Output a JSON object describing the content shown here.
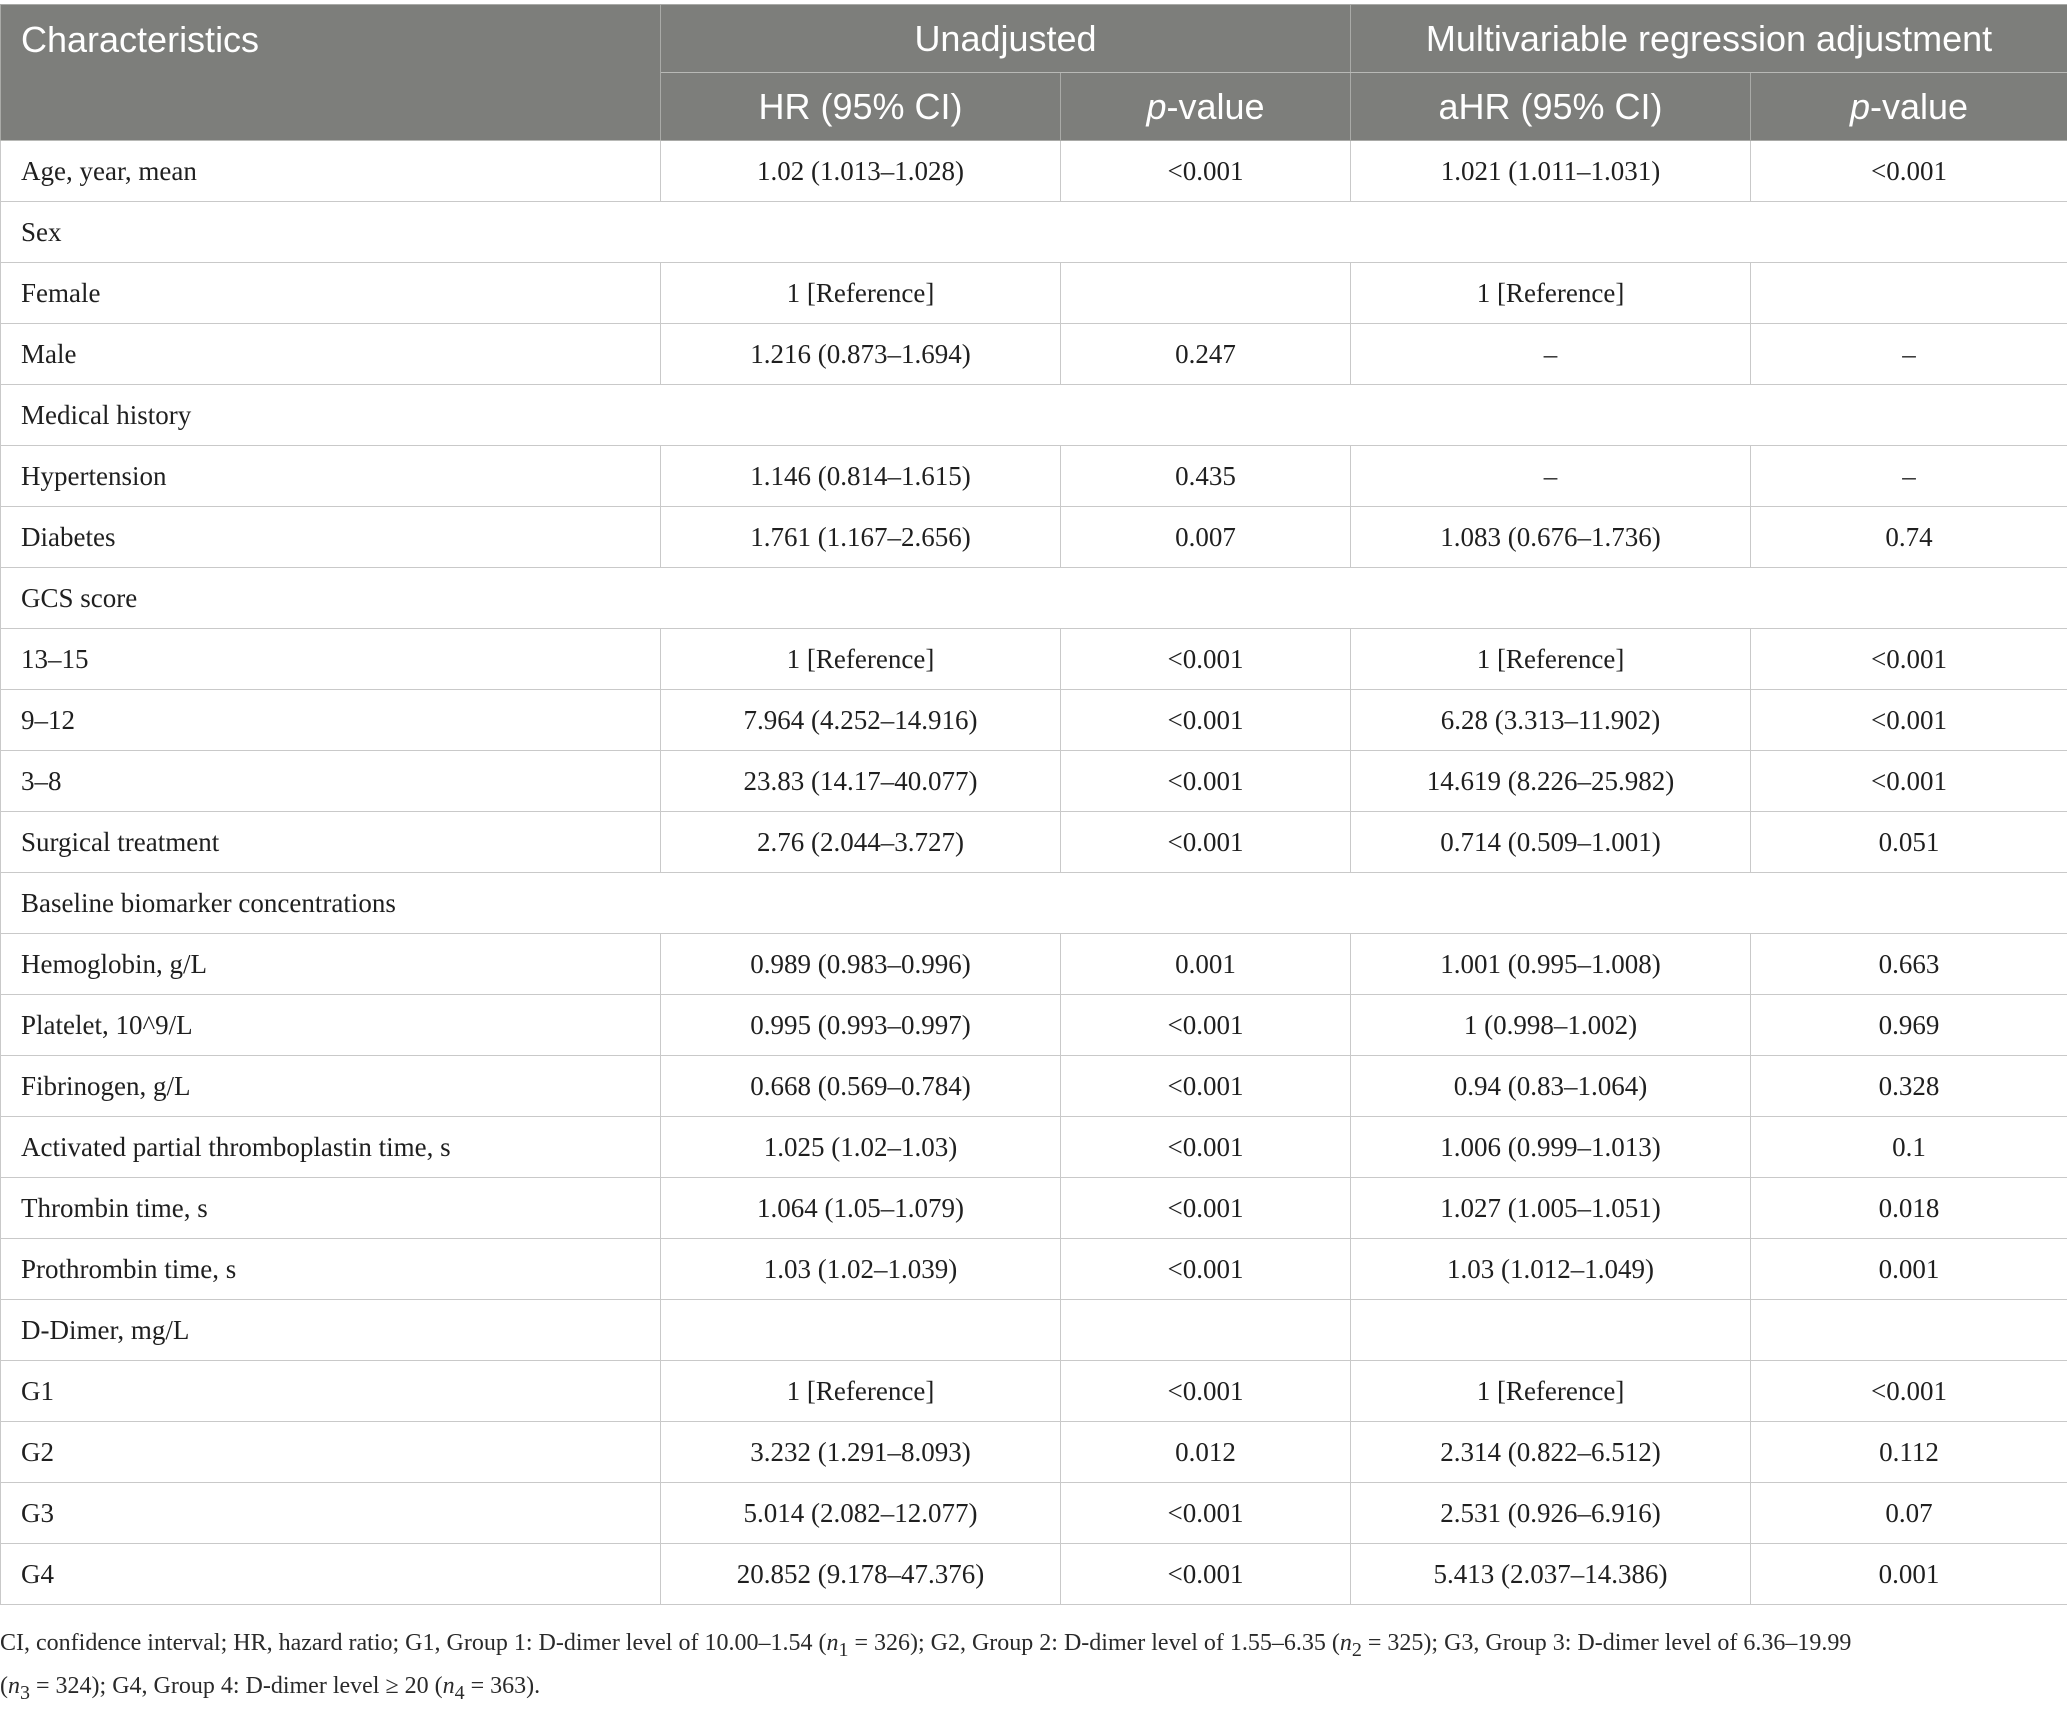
{
  "header": {
    "characteristics": "Characteristics",
    "unadjusted": "Unadjusted",
    "adjusted": "Multivariable regression adjustment",
    "hr_ci": "HR (95% CI)",
    "ahr_ci": "aHR (95% CI)",
    "p_italic": "p",
    "p_suffix": "-value"
  },
  "rows": [
    {
      "label": "Age, year, mean",
      "hr": "1.02 (1.013–1.028)",
      "p1": "<0.001",
      "ahr": "1.021 (1.011–1.031)",
      "p2": "<0.001"
    },
    {
      "label": "Sex",
      "section": true
    },
    {
      "label": "Female",
      "hr": "1 [Reference]",
      "p1": "",
      "ahr": "1 [Reference]",
      "p2": ""
    },
    {
      "label": "Male",
      "hr": "1.216 (0.873–1.694)",
      "p1": "0.247",
      "ahr": "–",
      "p2": "–"
    },
    {
      "label": "Medical history",
      "section": true
    },
    {
      "label": "Hypertension",
      "hr": "1.146 (0.814–1.615)",
      "p1": "0.435",
      "ahr": "–",
      "p2": "–"
    },
    {
      "label": "Diabetes",
      "hr": "1.761 (1.167–2.656)",
      "p1": "0.007",
      "ahr": "1.083 (0.676–1.736)",
      "p2": "0.74"
    },
    {
      "label": "GCS score",
      "section": true
    },
    {
      "label": "13–15",
      "hr": "1 [Reference]",
      "p1": "<0.001",
      "ahr": "1 [Reference]",
      "p2": "<0.001"
    },
    {
      "label": "9–12",
      "hr": "7.964 (4.252–14.916)",
      "p1": "<0.001",
      "ahr": "6.28 (3.313–11.902)",
      "p2": "<0.001"
    },
    {
      "label": "3–8",
      "hr": "23.83 (14.17–40.077)",
      "p1": "<0.001",
      "ahr": "14.619 (8.226–25.982)",
      "p2": "<0.001"
    },
    {
      "label": "Surgical treatment",
      "hr": "2.76 (2.044–3.727)",
      "p1": "<0.001",
      "ahr": "0.714 (0.509–1.001)",
      "p2": "0.051"
    },
    {
      "label": "Baseline biomarker concentrations",
      "section": true
    },
    {
      "label": "Hemoglobin, g/L",
      "hr": "0.989 (0.983–0.996)",
      "p1": "0.001",
      "ahr": "1.001 (0.995–1.008)",
      "p2": "0.663"
    },
    {
      "label": "Platelet, 10^9/L",
      "hr": "0.995 (0.993–0.997)",
      "p1": "<0.001",
      "ahr": "1 (0.998–1.002)",
      "p2": "0.969"
    },
    {
      "label": "Fibrinogen, g/L",
      "hr": "0.668 (0.569–0.784)",
      "p1": "<0.001",
      "ahr": "0.94 (0.83–1.064)",
      "p2": "0.328"
    },
    {
      "label": "Activated partial thromboplastin time, s",
      "hr": "1.025 (1.02–1.03)",
      "p1": "<0.001",
      "ahr": "1.006 (0.999–1.013)",
      "p2": "0.1"
    },
    {
      "label": "Thrombin time, s",
      "hr": "1.064 (1.05–1.079)",
      "p1": "<0.001",
      "ahr": "1.027 (1.005–1.051)",
      "p2": "0.018"
    },
    {
      "label": "Prothrombin time, s",
      "hr": "1.03 (1.02–1.039)",
      "p1": "<0.001",
      "ahr": "1.03 (1.012–1.049)",
      "p2": "0.001"
    },
    {
      "label": "D-Dimer, mg/L",
      "hr": "",
      "p1": "",
      "ahr": "",
      "p2": ""
    },
    {
      "label": "G1",
      "hr": "1 [Reference]",
      "p1": "<0.001",
      "ahr": "1 [Reference]",
      "p2": "<0.001"
    },
    {
      "label": "G2",
      "hr": "3.232 (1.291–8.093)",
      "p1": "0.012",
      "ahr": "2.314 (0.822–6.512)",
      "p2": "0.112"
    },
    {
      "label": "G3",
      "hr": "5.014 (2.082–12.077)",
      "p1": "<0.001",
      "ahr": "2.531 (0.926–6.916)",
      "p2": "0.07"
    },
    {
      "label": "G4",
      "hr": "20.852 (9.178–47.376)",
      "p1": "<0.001",
      "ahr": "5.413 (2.037–14.386)",
      "p2": "0.001"
    }
  ],
  "footnote": {
    "t1": "CI, confidence interval; HR, hazard ratio; G1, Group 1: D-dimer level of 10.00–1.54 (",
    "n1": "n",
    "s1": "1",
    "t2": " = 326); G2, Group 2: D-dimer level of 1.55–6.35 (",
    "n2": "n",
    "s2": "2",
    "t3": " = 325); G3, Group 3: D-dimer level of 6.36–19.99 (",
    "n3": "n",
    "s3": "3",
    "t4": " = 324); G4, Group 4: D-dimer level ≥ 20 (",
    "n4": "n",
    "s4": "4",
    "t5": " = 363)."
  }
}
